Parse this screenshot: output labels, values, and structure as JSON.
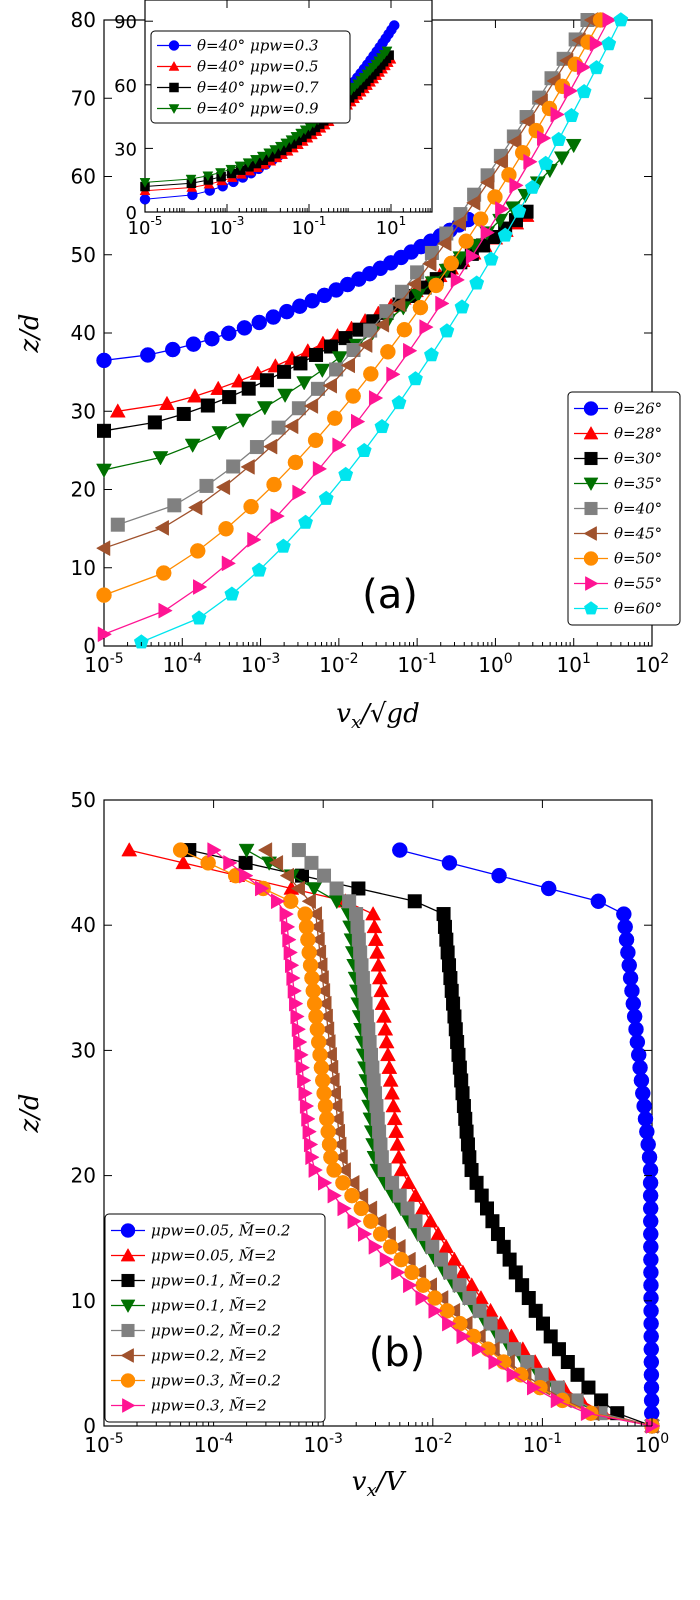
{
  "chart_data": [
    {
      "type": "line",
      "panel_label": "(a)",
      "title": "",
      "xscale": "log",
      "xlim": [
        1e-05,
        100
      ],
      "ylim": [
        0,
        80
      ],
      "xlabel_base": "v",
      "xlabel_sub": "x",
      "xlabel_rest": "/√gd",
      "ylabel": "z/d",
      "x_tick_labels": [
        {
          "value": 1e-05,
          "base": "10",
          "exp": "-5"
        },
        {
          "value": 0.0001,
          "base": "10",
          "exp": "-4"
        },
        {
          "value": 0.001,
          "base": "10",
          "exp": "-3"
        },
        {
          "value": 0.01,
          "base": "10",
          "exp": "-2"
        },
        {
          "value": 0.1,
          "base": "10",
          "exp": "-1"
        },
        {
          "value": 1,
          "base": "10",
          "exp": "0"
        },
        {
          "value": 10,
          "base": "10",
          "exp": "1"
        },
        {
          "value": 100,
          "base": "10",
          "exp": "2"
        }
      ],
      "y_ticks": [
        0,
        10,
        20,
        30,
        40,
        50,
        60,
        70,
        80
      ],
      "y_tick_labels": [
        "0",
        "10",
        "20",
        "30",
        "40",
        "50",
        "60",
        "70",
        "80"
      ],
      "legend_position": "lower-right",
      "series": [
        {
          "name": "θ=26°",
          "color": "#0000ff",
          "marker": "circle",
          "z_bottom": 36.5,
          "z_top": 54.5,
          "v_bottom": 1e-05,
          "v_top": 0.45,
          "z_max": 54.5,
          "v_bulk": 0.45
        },
        {
          "name": "θ=28°",
          "color": "#ff0000",
          "marker": "triangle-up",
          "z_bottom": 30,
          "z_top": 55,
          "v_bottom": 1.5e-05,
          "v_top": 2.5,
          "z_max": 55,
          "v_bulk": 2.5
        },
        {
          "name": "θ=30°",
          "color": "#000000",
          "marker": "square",
          "z_bottom": 27.5,
          "z_top": 55.5,
          "v_bottom": 1e-05,
          "v_top": 2.5,
          "z_max": 55.5,
          "v_bulk": 2.5
        },
        {
          "name": "θ=35°",
          "color": "#007000",
          "marker": "triangle-down",
          "z_bottom": 22.5,
          "z_top": 64,
          "v_bottom": 1e-05,
          "v_top": 10,
          "z_max": 64,
          "v_bulk": 10
        },
        {
          "name": "θ=40°",
          "color": "#808080",
          "marker": "square",
          "z_bottom": 15.5,
          "z_top": 80,
          "v_bottom": 1.5e-05,
          "v_top": 15,
          "z_max": 80,
          "v_bulk": 15
        },
        {
          "name": "θ=45°",
          "color": "#a0522d",
          "marker": "triangle-left",
          "z_bottom": 12.5,
          "z_top": 80,
          "v_bottom": 1e-05,
          "v_top": 17,
          "z_max": 80,
          "v_bulk": 17
        },
        {
          "name": "θ=50°",
          "color": "#ff8c00",
          "marker": "circle",
          "z_bottom": 6.5,
          "z_top": 80,
          "v_bottom": 1e-05,
          "v_top": 22,
          "z_max": 80,
          "v_bulk": 22
        },
        {
          "name": "θ=55°",
          "color": "#ff1493",
          "marker": "triangle-right",
          "z_bottom": 1.5,
          "z_top": 80,
          "v_bottom": 1e-05,
          "v_top": 28,
          "z_max": 80,
          "v_bulk": 28
        },
        {
          "name": "θ=60°",
          "color": "#00e5ee",
          "marker": "pentagon",
          "z_bottom": 0.5,
          "z_top": 80,
          "v_bottom": 3e-05,
          "v_top": 40,
          "z_max": 80,
          "v_bulk": 40
        }
      ],
      "inset": {
        "xscale": "log",
        "xlim": [
          1e-05,
          100
        ],
        "ylim": [
          0,
          100
        ],
        "x_tick_labels": [
          {
            "value": 1e-05,
            "base": "10",
            "exp": "-5"
          },
          {
            "value": 0.001,
            "base": "10",
            "exp": "-3"
          },
          {
            "value": 0.1,
            "base": "10",
            "exp": "-1"
          },
          {
            "value": 10,
            "base": "10",
            "exp": "1"
          }
        ],
        "y_ticks": [
          0,
          30,
          60,
          90
        ],
        "y_tick_labels": [
          "0",
          "30",
          "60",
          "90"
        ],
        "legend_position": "upper-left",
        "series": [
          {
            "name": "θ=40° μpw=0.3",
            "color": "#0000ff",
            "marker": "circle",
            "z_bottom": 6,
            "z_max": 88,
            "v_bulk": 12
          },
          {
            "name": "θ=40° μpw=0.5",
            "color": "#ff0000",
            "marker": "triangle-up",
            "z_bottom": 10,
            "z_max": 72,
            "v_bulk": 10
          },
          {
            "name": "θ=40° μpw=0.7",
            "color": "#000000",
            "marker": "square",
            "z_bottom": 12,
            "z_max": 74,
            "v_bulk": 9
          },
          {
            "name": "θ=40° μpw=0.9",
            "color": "#007000",
            "marker": "triangle-down",
            "z_bottom": 14,
            "z_max": 76,
            "v_bulk": 8
          }
        ]
      }
    },
    {
      "type": "line",
      "panel_label": "(b)",
      "title": "",
      "xscale": "log",
      "xlim": [
        1e-05,
        1
      ],
      "ylim": [
        0,
        50
      ],
      "xlabel_base": "v",
      "xlabel_sub": "x",
      "xlabel_rest": "/V",
      "ylabel": "z/d",
      "x_tick_labels": [
        {
          "value": 1e-05,
          "base": "10",
          "exp": "-5"
        },
        {
          "value": 0.0001,
          "base": "10",
          "exp": "-4"
        },
        {
          "value": 0.001,
          "base": "10",
          "exp": "-3"
        },
        {
          "value": 0.01,
          "base": "10",
          "exp": "-2"
        },
        {
          "value": 0.1,
          "base": "10",
          "exp": "-1"
        },
        {
          "value": 1,
          "base": "10",
          "exp": "0"
        }
      ],
      "y_ticks": [
        0,
        10,
        20,
        30,
        40,
        50
      ],
      "y_tick_labels": [
        "0",
        "10",
        "20",
        "30",
        "40",
        "50"
      ],
      "legend_position": "lower-left",
      "series": [
        {
          "name": "μpw=0.05, M̃=0.2",
          "color": "#0000ff",
          "marker": "circle",
          "v_surface": 0.005,
          "v_mid": 0.97
        },
        {
          "name": "μpw=0.05, M̃=2",
          "color": "#ff0000",
          "marker": "triangle-up",
          "v_surface": 1.7e-05,
          "v_mid": 0.005
        },
        {
          "name": "μpw=0.1, M̃=0.2",
          "color": "#000000",
          "marker": "square",
          "v_surface": 6e-05,
          "v_mid": 0.022
        },
        {
          "name": "μpw=0.1, M̃=2",
          "color": "#007000",
          "marker": "triangle-down",
          "v_surface": 0.0002,
          "v_mid": 0.003
        },
        {
          "name": "μpw=0.2, M̃=0.2",
          "color": "#808080",
          "marker": "square",
          "v_surface": 0.0006,
          "v_mid": 0.0035
        },
        {
          "name": "μpw=0.2, M̃=2",
          "color": "#a0522d",
          "marker": "triangle-left",
          "v_surface": 0.0003,
          "v_mid": 0.0015
        },
        {
          "name": "μpw=0.3, M̃=0.2",
          "color": "#ff8c00",
          "marker": "circle",
          "v_surface": 5e-05,
          "v_mid": 0.0012
        },
        {
          "name": "μpw=0.3, M̃=2",
          "color": "#ff1493",
          "marker": "triangle-right",
          "v_surface": 0.0001,
          "v_mid": 0.0008
        }
      ]
    }
  ]
}
